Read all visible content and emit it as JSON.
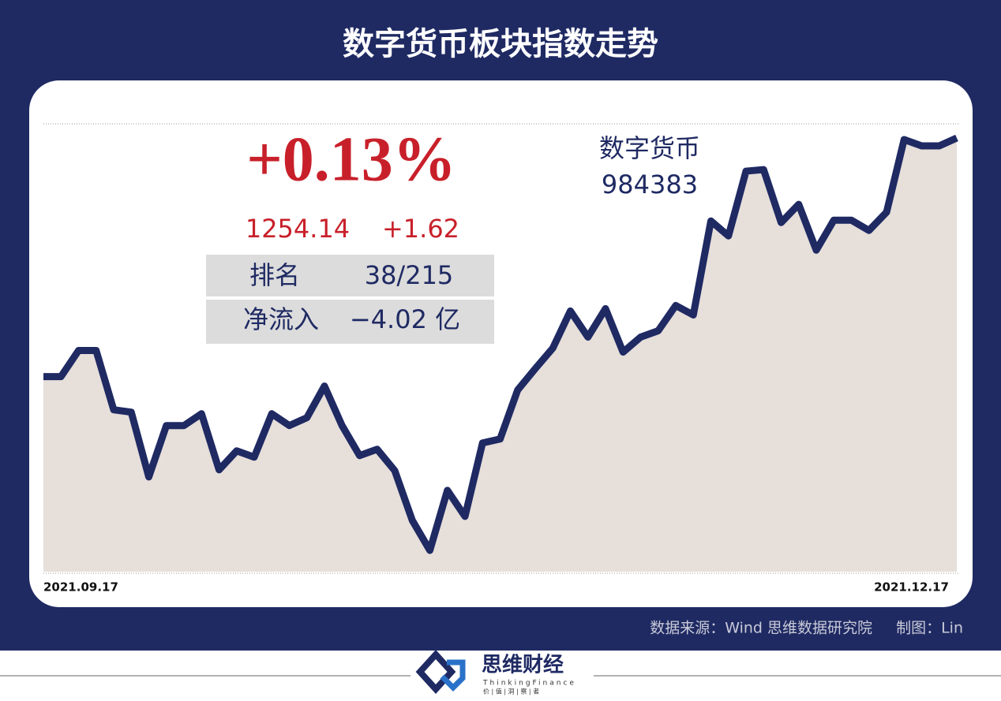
{
  "chart_data": {
    "type": "area-line",
    "title": "数字货币板块指数走势",
    "change_pct": "+0.13%",
    "close": "1254.14",
    "change": "+1.62",
    "stats": [
      [
        "排名",
        "38/215"
      ],
      [
        "净流入",
        "−4.02 亿"
      ]
    ],
    "index_name": "数字货币",
    "index_code": "984383",
    "categories": [
      "2021.09.17",
      null,
      null,
      null,
      null,
      null,
      null,
      null,
      null,
      null,
      null,
      null,
      null,
      null,
      null,
      null,
      null,
      null,
      null,
      null,
      null,
      null,
      null,
      null,
      null,
      null,
      null,
      null,
      null,
      null,
      null,
      null,
      null,
      null,
      null,
      null,
      null,
      null,
      null,
      null,
      null,
      null,
      null,
      null,
      null,
      null,
      null,
      null,
      null,
      null,
      null,
      null,
      "2021.12.17"
    ],
    "values": [
      952,
      952,
      985,
      985,
      910,
      907,
      825,
      890,
      890,
      905,
      834,
      858,
      850,
      905,
      890,
      900,
      940,
      890,
      852,
      860,
      833,
      770,
      732,
      808,
      775,
      868,
      873,
      935,
      962,
      988,
      1035,
      1002,
      1038,
      983,
      1002,
      1010,
      1042,
      1030,
      1149,
      1130,
      1212,
      1214,
      1147,
      1170,
      1112,
      1150,
      1150,
      1137,
      1160,
      1252,
      1244,
      1244,
      1254
    ],
    "color": "#1f2a63",
    "fill": "#e6dfda",
    "source": "数据来源：Wind  思维数据研究院",
    "credit": "制图：Lin"
  },
  "brand": {
    "name": "思维财经",
    "english": "ThinkingFinance",
    "motto": "价 | 值 | 洞 | 察 | 者"
  }
}
